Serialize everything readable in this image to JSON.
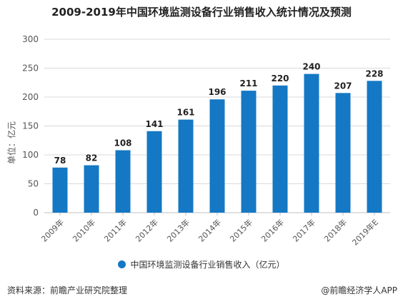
{
  "title": "2009-2019年中国环境监测设备行业销售收入统计情况及预测",
  "ylabel": "单位：亿元",
  "legend_label": "中国环境监测设备行业销售收入（亿元）",
  "source_left": "资料来源：前瞻产业研究院整理",
  "source_right": "@前瞻经济学人APP",
  "colors": {
    "bar": "#1478c4",
    "grid": "#d9d9d9",
    "axis": "#bfbfbf"
  },
  "chart_data": {
    "type": "bar",
    "title": "2009-2019年中国环境监测设备行业销售收入统计情况及预测",
    "xlabel": "",
    "ylabel": "单位：亿元",
    "ylim": [
      0,
      300
    ],
    "yticks": [
      0,
      50,
      100,
      150,
      200,
      250,
      300
    ],
    "grid": true,
    "legend_position": "bottom",
    "categories": [
      "2009年",
      "2010年",
      "2011年",
      "2012年",
      "2013年",
      "2014年",
      "2015年",
      "2016年",
      "2017年",
      "2018年",
      "2019年E"
    ],
    "series": [
      {
        "name": "中国环境监测设备行业销售收入（亿元）",
        "values": [
          78,
          82,
          108,
          141,
          161,
          196,
          211,
          220,
          240,
          207,
          228
        ]
      }
    ]
  }
}
